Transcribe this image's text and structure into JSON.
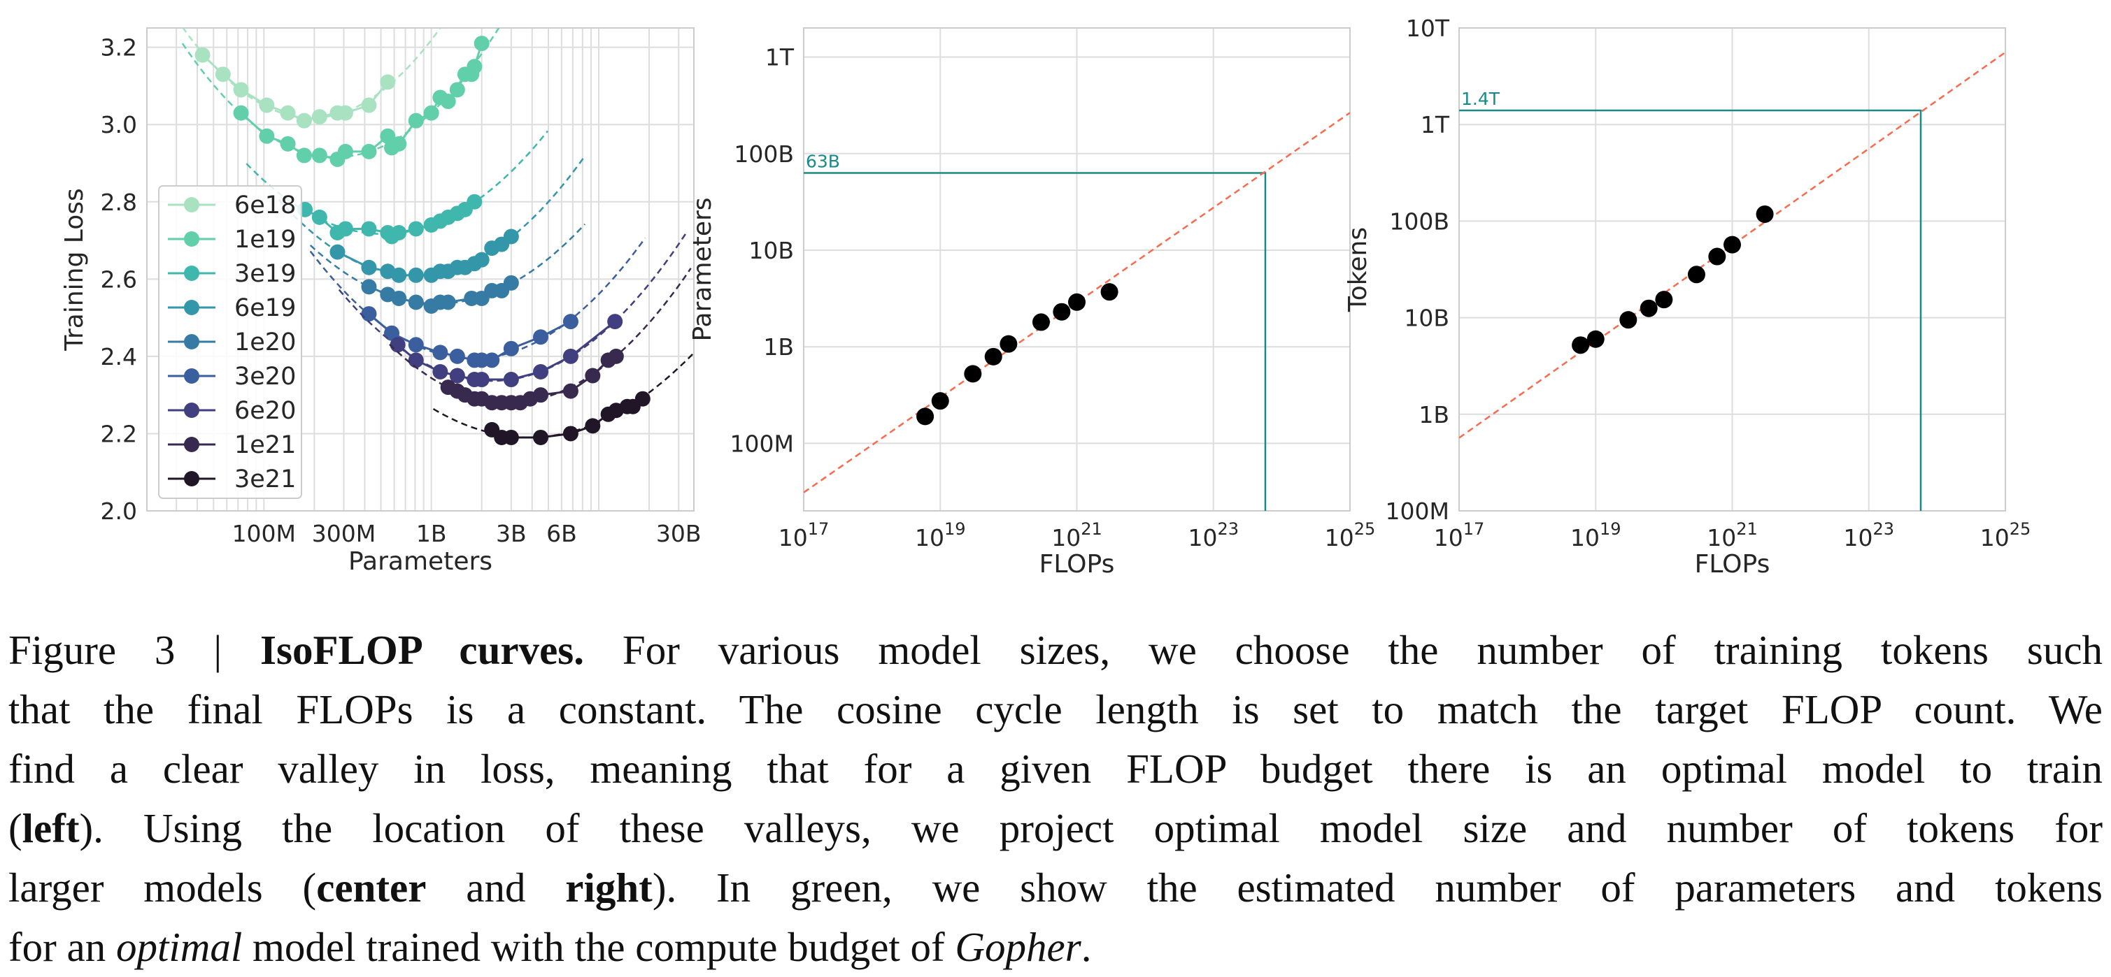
{
  "chart_data": [
    {
      "type": "line",
      "title": "",
      "xlabel": "Parameters",
      "ylabel": "Training Loss",
      "xscale": "log",
      "xlim": [
        20000000.0,
        37000000000.0
      ],
      "ylim": [
        2.0,
        3.25
      ],
      "grid": true,
      "legend_position": "center-left",
      "xticks": [
        {
          "value": 100000000.0,
          "label": "100M"
        },
        {
          "value": 300000000.0,
          "label": "300M"
        },
        {
          "value": 1000000000.0,
          "label": "1B"
        },
        {
          "value": 3000000000.0,
          "label": "3B"
        },
        {
          "value": 6000000000.0,
          "label": "6B"
        },
        {
          "value": 30000000000.0,
          "label": "30B"
        }
      ],
      "yticks": [
        {
          "value": 2.0,
          "label": "2.0"
        },
        {
          "value": 2.2,
          "label": "2.2"
        },
        {
          "value": 2.4,
          "label": "2.4"
        },
        {
          "value": 2.6,
          "label": "2.6"
        },
        {
          "value": 2.8,
          "label": "2.8"
        },
        {
          "value": 3.0,
          "label": "3.0"
        },
        {
          "value": 3.2,
          "label": "3.2"
        }
      ],
      "series": [
        {
          "name": "6e18",
          "color": "#a8e2c1",
          "points": [
            [
              43000000.0,
              3.18
            ],
            [
              57000000.0,
              3.13
            ],
            [
              73000000.0,
              3.09
            ],
            [
              104000000.0,
              3.05
            ],
            [
              139000000.0,
              3.03
            ],
            [
              174000000.0,
              3.01
            ],
            [
              215000000.0,
              3.02
            ],
            [
              275000000.0,
              3.03
            ],
            [
              307000000.0,
              3.03
            ],
            [
              424000000.0,
              3.05
            ],
            [
              549000000.0,
              3.11
            ]
          ]
        },
        {
          "name": "1e19",
          "color": "#60cfaa",
          "points": [
            [
              73000000.0,
              3.03
            ],
            [
              104000000.0,
              2.97
            ],
            [
              139000000.0,
              2.95
            ],
            [
              174000000.0,
              2.92
            ],
            [
              215000000.0,
              2.92
            ],
            [
              275000000.0,
              2.91
            ],
            [
              307000000.0,
              2.93
            ],
            [
              424000000.0,
              2.93
            ],
            [
              549000000.0,
              2.97
            ],
            [
              580000000.0,
              2.94
            ],
            [
              640000000.0,
              2.95
            ],
            [
              810000000.0,
              3.01
            ],
            [
              1000000000.0,
              3.03
            ],
            [
              1130000000.0,
              3.07
            ],
            [
              1260000000.0,
              3.06
            ],
            [
              1430000000.0,
              3.09
            ],
            [
              1590000000.0,
              3.13
            ],
            [
              1740000000.0,
              3.13
            ],
            [
              1810000000.0,
              3.15
            ],
            [
              2000000000.0,
              3.21
            ]
          ]
        },
        {
          "name": "3e19",
          "color": "#40b7ad",
          "points": [
            [
              176000000.0,
              2.78
            ],
            [
              215000000.0,
              2.76
            ],
            [
              275000000.0,
              2.72
            ],
            [
              307000000.0,
              2.73
            ],
            [
              424000000.0,
              2.73
            ],
            [
              549000000.0,
              2.72
            ],
            [
              580000000.0,
              2.71
            ],
            [
              640000000.0,
              2.72
            ],
            [
              810000000.0,
              2.73
            ],
            [
              1000000000.0,
              2.74
            ],
            [
              1130000000.0,
              2.75
            ],
            [
              1260000000.0,
              2.76
            ],
            [
              1430000000.0,
              2.77
            ],
            [
              1590000000.0,
              2.78
            ],
            [
              1810000000.0,
              2.8
            ]
          ]
        },
        {
          "name": "6e19",
          "color": "#3497a9",
          "points": [
            [
              275000000.0,
              2.67
            ],
            [
              424000000.0,
              2.63
            ],
            [
              549000000.0,
              2.62
            ],
            [
              640000000.0,
              2.61
            ],
            [
              810000000.0,
              2.61
            ],
            [
              1000000000.0,
              2.61
            ],
            [
              1130000000.0,
              2.62
            ],
            [
              1260000000.0,
              2.62
            ],
            [
              1430000000.0,
              2.63
            ],
            [
              1590000000.0,
              2.63
            ],
            [
              1810000000.0,
              2.64
            ],
            [
              2000000000.0,
              2.65
            ],
            [
              2300000000.0,
              2.68
            ],
            [
              2630000000.0,
              2.69
            ],
            [
              3000000000.0,
              2.71
            ]
          ]
        },
        {
          "name": "1e20",
          "color": "#357ba3",
          "points": [
            [
              424000000.0,
              2.58
            ],
            [
              549000000.0,
              2.56
            ],
            [
              640000000.0,
              2.55
            ],
            [
              810000000.0,
              2.54
            ],
            [
              1000000000.0,
              2.53
            ],
            [
              1130000000.0,
              2.54
            ],
            [
              1260000000.0,
              2.54
            ],
            [
              1740000000.0,
              2.55
            ],
            [
              2000000000.0,
              2.55
            ],
            [
              2300000000.0,
              2.57
            ],
            [
              2630000000.0,
              2.57
            ],
            [
              3000000000.0,
              2.59
            ]
          ]
        },
        {
          "name": "3e20",
          "color": "#3a5e9e",
          "points": [
            [
              424000000.0,
              2.51
            ],
            [
              580000000.0,
              2.46
            ],
            [
              810000000.0,
              2.43
            ],
            [
              1130000000.0,
              2.41
            ],
            [
              1430000000.0,
              2.4
            ],
            [
              1810000000.0,
              2.39
            ],
            [
              2000000000.0,
              2.39
            ],
            [
              2300000000.0,
              2.39
            ],
            [
              3000000000.0,
              2.42
            ],
            [
              4500000000.0,
              2.45
            ],
            [
              6800000000.0,
              2.49
            ]
          ]
        },
        {
          "name": "6e20",
          "color": "#413f80",
          "points": [
            [
              630000000.0,
              2.43
            ],
            [
              810000000.0,
              2.39
            ],
            [
              1130000000.0,
              2.36
            ],
            [
              1430000000.0,
              2.35
            ],
            [
              1810000000.0,
              2.34
            ],
            [
              2000000000.0,
              2.34
            ],
            [
              3000000000.0,
              2.34
            ],
            [
              4500000000.0,
              2.36
            ],
            [
              6800000000.0,
              2.4
            ],
            [
              12500000000.0,
              2.49
            ]
          ]
        },
        {
          "name": "1e21",
          "color": "#38294f",
          "points": [
            [
              1260000000.0,
              2.32
            ],
            [
              1430000000.0,
              2.31
            ],
            [
              1590000000.0,
              2.3
            ],
            [
              1810000000.0,
              2.29
            ],
            [
              2000000000.0,
              2.29
            ],
            [
              2300000000.0,
              2.28
            ],
            [
              2630000000.0,
              2.28
            ],
            [
              3000000000.0,
              2.28
            ],
            [
              3400000000.0,
              2.28
            ],
            [
              3900000000.0,
              2.29
            ],
            [
              4500000000.0,
              2.3
            ],
            [
              6800000000.0,
              2.31
            ],
            [
              9200000000.0,
              2.35
            ],
            [
              11400000000.0,
              2.39
            ],
            [
              12700000000.0,
              2.4
            ]
          ]
        },
        {
          "name": "3e21",
          "color": "#211627",
          "points": [
            [
              2300000000.0,
              2.21
            ],
            [
              2630000000.0,
              2.19
            ],
            [
              3000000000.0,
              2.19
            ],
            [
              4500000000.0,
              2.19
            ],
            [
              6800000000.0,
              2.2
            ],
            [
              9200000000.0,
              2.22
            ],
            [
              11400000000.0,
              2.25
            ],
            [
              12700000000.0,
              2.26
            ],
            [
              14800000000.0,
              2.27
            ],
            [
              16000000000.0,
              2.27
            ],
            [
              18300000000.0,
              2.29
            ]
          ]
        }
      ]
    },
    {
      "type": "scatter",
      "title": "",
      "xlabel": "FLOPs",
      "ylabel": "Parameters",
      "xscale": "log",
      "yscale": "log",
      "xlim": [
        1e+17,
        1e+25
      ],
      "ylim": [
        20000000.0,
        2000000000000.0
      ],
      "grid": true,
      "xticks": [
        {
          "value": 1e+17,
          "base": "10",
          "exp": "17"
        },
        {
          "value": 1e+19,
          "base": "10",
          "exp": "19"
        },
        {
          "value": 1e+21,
          "base": "10",
          "exp": "21"
        },
        {
          "value": 1e+23,
          "base": "10",
          "exp": "23"
        },
        {
          "value": 1e+25,
          "base": "10",
          "exp": "25"
        }
      ],
      "yticks": [
        {
          "value": 100000000.0,
          "label": "100M"
        },
        {
          "value": 1000000000.0,
          "label": "1B"
        },
        {
          "value": 10000000000.0,
          "label": "10B"
        },
        {
          "value": 100000000000.0,
          "label": "100B"
        },
        {
          "value": 1000000000000.0,
          "label": "1T"
        }
      ],
      "points": [
        [
          6e+18,
          190000000.0
        ],
        [
          1e+19,
          275000000.0
        ],
        [
          3e+19,
          525000000.0
        ],
        [
          6e+19,
          790000000.0
        ],
        [
          1e+20,
          1070000000.0
        ],
        [
          3e+20,
          1800000000.0
        ],
        [
          6e+20,
          2300000000.0
        ],
        [
          1e+21,
          2900000000.0
        ],
        [
          3e+21,
          3700000000.0
        ]
      ],
      "point_color": "#000000",
      "fit_line": {
        "x": [
          1e+17,
          1e+25
        ],
        "y": [
          31000000.0,
          265000000000.0
        ],
        "color": "#fa6a4f"
      },
      "projection": {
        "flops": 5.76e+23,
        "value": 63000000000.0,
        "label": "63B",
        "color": "#1a8a86"
      }
    },
    {
      "type": "scatter",
      "title": "",
      "xlabel": "FLOPs",
      "ylabel": "Tokens",
      "xscale": "log",
      "yscale": "log",
      "xlim": [
        1e+17,
        1e+25
      ],
      "ylim": [
        100000000.0,
        10000000000000.0
      ],
      "grid": true,
      "xticks": [
        {
          "value": 1e+17,
          "base": "10",
          "exp": "17"
        },
        {
          "value": 1e+19,
          "base": "10",
          "exp": "19"
        },
        {
          "value": 1e+21,
          "base": "10",
          "exp": "21"
        },
        {
          "value": 1e+23,
          "base": "10",
          "exp": "23"
        },
        {
          "value": 1e+25,
          "base": "10",
          "exp": "25"
        }
      ],
      "yticks": [
        {
          "value": 100000000.0,
          "label": "100M"
        },
        {
          "value": 1000000000.0,
          "label": "1B"
        },
        {
          "value": 10000000000.0,
          "label": "10B"
        },
        {
          "value": 100000000000.0,
          "label": "100B"
        },
        {
          "value": 1000000000000.0,
          "label": "1T"
        },
        {
          "value": 10000000000000.0,
          "label": "10T"
        }
      ],
      "points": [
        [
          6e+18,
          5200000000.0
        ],
        [
          1e+19,
          6000000000.0
        ],
        [
          3e+19,
          9500000000.0
        ],
        [
          6e+19,
          12500000000.0
        ],
        [
          1e+20,
          15400000000.0
        ],
        [
          3e+20,
          28000000000.0
        ],
        [
          6e+20,
          43000000000.0
        ],
        [
          1e+21,
          57000000000.0
        ],
        [
          3e+21,
          118000000000.0
        ]
      ],
      "point_color": "#000000",
      "fit_line": {
        "x": [
          1e+17,
          1e+25
        ],
        "y": [
          570000000.0,
          5600000000000.0
        ],
        "color": "#fa6a4f"
      },
      "projection": {
        "flops": 5.76e+23,
        "value": 1400000000000.0,
        "label": "1.4T",
        "color": "#1a8a86"
      }
    }
  ],
  "caption": {
    "lines": [
      [
        {
          "text": "Figure 3 | ",
          "style": ""
        },
        {
          "text": "IsoFLOP curves.",
          "style": "b"
        },
        {
          "text": " For various model sizes, we choose the number of training tokens such",
          "style": ""
        }
      ],
      [
        {
          "text": "that the final FLOPs is a constant. The cosine cycle length is set to match the target FLOP count. We",
          "style": ""
        }
      ],
      [
        {
          "text": "find a clear valley in loss, meaning that for a given FLOP budget there is an optimal model to train",
          "style": ""
        }
      ],
      [
        {
          "text": "(",
          "style": ""
        },
        {
          "text": "left",
          "style": "b"
        },
        {
          "text": "). Using the location of these valleys, we project optimal model size and number of tokens for",
          "style": ""
        }
      ],
      [
        {
          "text": "larger models (",
          "style": ""
        },
        {
          "text": "center",
          "style": "b"
        },
        {
          "text": " and ",
          "style": ""
        },
        {
          "text": "right",
          "style": "b"
        },
        {
          "text": "). In green, we show the estimated number of parameters and tokens",
          "style": ""
        }
      ],
      [
        {
          "text": "for an ",
          "style": ""
        },
        {
          "text": "optimal",
          "style": "i"
        },
        {
          "text": " model trained with the compute budget of ",
          "style": ""
        },
        {
          "text": "Gopher",
          "style": "i"
        },
        {
          "text": ".",
          "style": ""
        }
      ]
    ]
  }
}
